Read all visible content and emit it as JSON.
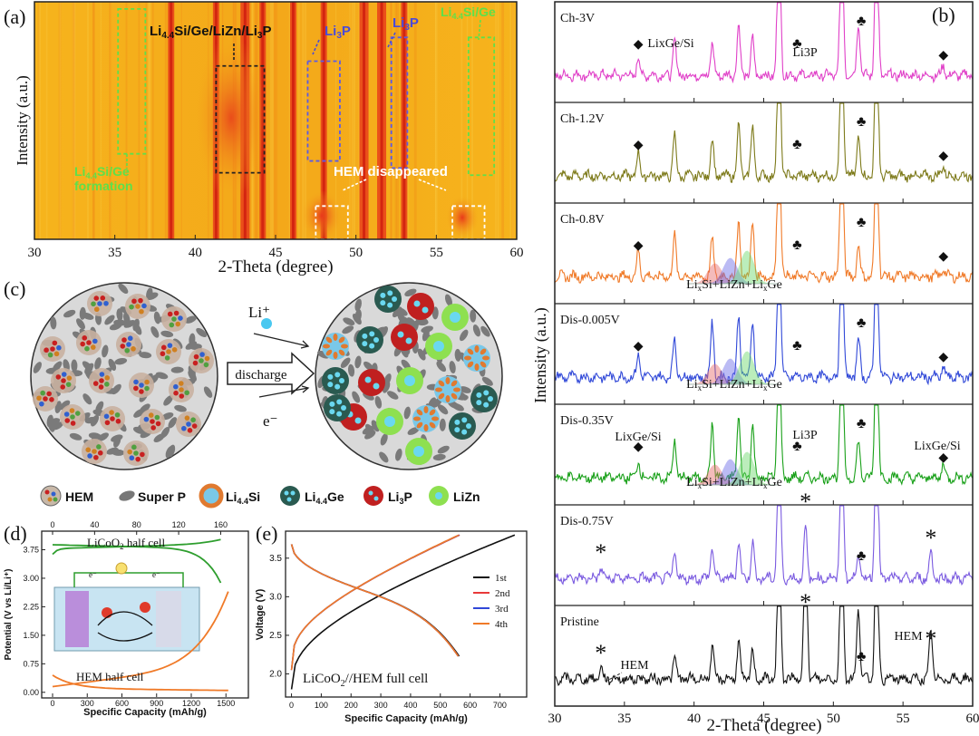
{
  "panel_labels": {
    "a": "(a)",
    "b": "(b)",
    "c": "(c)",
    "d": "(d)",
    "e": "(e)"
  },
  "chart_data": [
    {
      "id": "a",
      "type": "heatmap",
      "xlabel": "2-Theta (degree)",
      "ylabel": "Intensity (a.u.)",
      "xlim": [
        30,
        60
      ],
      "xticks": [
        30,
        35,
        40,
        45,
        50,
        55,
        60
      ],
      "bright_bands_deg": [
        38.5,
        41.3,
        43.1,
        44.2,
        46.1,
        48.0,
        50.5,
        51.6,
        53.0
      ],
      "boxes": [
        {
          "label": "Li4.4Si/Ge formation",
          "color": "#5ee04a",
          "x": [
            35.2,
            36.9
          ],
          "y": [
            0.03,
            0.64
          ]
        },
        {
          "label": "Li4.4Si/Ge/LiZn/Li3P",
          "color": "#222222",
          "x": [
            41.3,
            44.3
          ],
          "y": [
            0.27,
            0.72
          ]
        },
        {
          "label": "Li3P",
          "color": "#5a5ae8",
          "x": [
            47.0,
            49.0
          ],
          "y": [
            0.25,
            0.67
          ]
        },
        {
          "label": "Li3P",
          "color": "#5a5ae8",
          "x": [
            52.2,
            53.2
          ],
          "y": [
            0.15,
            0.7
          ]
        },
        {
          "label": "Li4.4Si/Ge",
          "color": "#5ee04a",
          "x": [
            57.0,
            58.6
          ],
          "y": [
            0.15,
            0.73
          ]
        },
        {
          "label": "HEM disappeared",
          "color": "#ffffff",
          "x": [
            47.5,
            49.5
          ],
          "y": [
            0.86,
            1.0
          ]
        },
        {
          "label": "HEM disappeared",
          "color": "#ffffff",
          "x": [
            56.0,
            58.0
          ],
          "y": [
            0.86,
            1.0
          ]
        }
      ],
      "annotations": {
        "top_left": "Li4.4Si/Ge/LiZn/Li3P",
        "li3p_1": "Li3P",
        "li3p_2": "Li3P",
        "top_right": "Li4.4Si/Ge",
        "formation_1": "Li4.4Si/Ge",
        "formation_2": "formation",
        "hem": "HEM disappeared"
      }
    },
    {
      "id": "b",
      "type": "line",
      "xlabel": "2-Theta (degree)",
      "ylabel": "Intensity (a.u.)",
      "xlim": [
        30,
        60
      ],
      "xticks": [
        30,
        35,
        40,
        45,
        50,
        55,
        60
      ],
      "series": [
        {
          "name": "Ch-3V",
          "color": "#e040c8",
          "notes": [
            "LixGe/Si",
            "Li3P"
          ]
        },
        {
          "name": "Ch-1.2V",
          "color": "#7d7a1a",
          "notes": []
        },
        {
          "name": "Ch-0.8V",
          "color": "#f07a28",
          "notes": [
            "LixSi+LiZn+LixGe"
          ]
        },
        {
          "name": "Dis-0.005V",
          "color": "#3048d8",
          "notes": [
            "LixSi+LiZn+LixGe"
          ]
        },
        {
          "name": "Dis-0.35V",
          "color": "#18a018",
          "notes": [
            "LixGe/Si",
            "Li3P",
            "LixGe/Si",
            "LixSi+LiZn+LixGe"
          ]
        },
        {
          "name": "Dis-0.75V",
          "color": "#7a5ae0",
          "notes": []
        },
        {
          "name": "Pristine",
          "color": "#111111",
          "notes": [
            "HEM",
            "HEM"
          ]
        }
      ],
      "peaks_deg": [
        36.0,
        38.6,
        41.3,
        43.2,
        44.2,
        46.1,
        48.0,
        50.6,
        51.8,
        53.1,
        57.0
      ],
      "markers": {
        "diamond": "◆",
        "club": "♣",
        "star": "*"
      }
    },
    {
      "id": "d",
      "type": "line",
      "xlabel": "Specific Capacity (mAh/g)",
      "ylabel": "Potential (V vs Li/Li⁺)",
      "xlim": [
        0,
        1600
      ],
      "ylim": [
        -0.1,
        4.0
      ],
      "xticks": [
        0,
        300,
        600,
        900,
        1200,
        1500
      ],
      "yticks": [
        0.0,
        0.75,
        1.5,
        2.25,
        3.0,
        3.75
      ],
      "top_xticks": [
        0,
        40,
        80,
        120,
        160
      ],
      "series": [
        {
          "name": "LiCoO2 half cell",
          "color": "#2e9e2e",
          "x": [
            0,
            160
          ],
          "y": [
            3.55,
            4.0
          ]
        },
        {
          "name": "HEM half cell",
          "color": "#f07a28",
          "x": [
            0,
            1550
          ],
          "y": [
            0.1,
            3.0
          ]
        }
      ]
    },
    {
      "id": "e",
      "type": "line",
      "xlabel": "Specific Capacity (mAh/g)",
      "ylabel": "Voltage (V)",
      "xlim": [
        -20,
        790
      ],
      "ylim": [
        1.7,
        3.85
      ],
      "xticks": [
        0,
        100,
        200,
        300,
        400,
        500,
        600,
        700
      ],
      "yticks": [
        2.0,
        2.5,
        3.0,
        3.5
      ],
      "legend_position": "right",
      "series": [
        {
          "name": "1st",
          "color": "#111111",
          "charge_end": 750
        },
        {
          "name": "2nd",
          "color": "#e83a3a",
          "charge_end": 565
        },
        {
          "name": "3rd",
          "color": "#3048d8",
          "charge_end": 563
        },
        {
          "name": "4th",
          "color": "#f07a28",
          "charge_end": 562
        }
      ],
      "annotation": "LiCoO2//HEM full cell"
    }
  ],
  "schematic": {
    "li_plus": "Li⁺",
    "electron": "e⁻",
    "discharge": "discharge",
    "legend": [
      {
        "name": "HEM",
        "color": "#c88a6a"
      },
      {
        "name": "Super P",
        "color": "#777777"
      },
      {
        "name": "Li4.4Si",
        "color": "#f08a3a"
      },
      {
        "name": "Li4.4Ge",
        "color": "#2a5a50"
      },
      {
        "name": "Li3P",
        "color": "#c02020"
      },
      {
        "name": "LiZn",
        "color": "#8ee050"
      }
    ]
  }
}
